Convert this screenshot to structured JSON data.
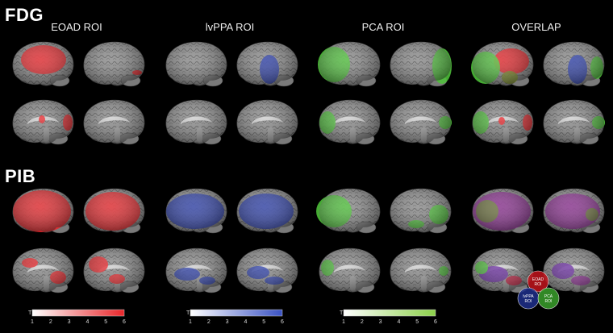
{
  "sections": {
    "top": "FDG",
    "bottom": "PIB"
  },
  "columns": [
    {
      "label": "EOAD ROI",
      "overlay_color": "#e8262a"
    },
    {
      "label": "lvPPA ROI",
      "overlay_color": "#2c3fa8"
    },
    {
      "label": "PCA ROI",
      "overlay_color": "#4fc23a"
    },
    {
      "label": "OVERLAP",
      "overlay_color": "#8a2e8f"
    }
  ],
  "colorbars": [
    {
      "axis_label": "T",
      "ticks": [
        "1",
        "2",
        "3",
        "4",
        "5",
        "6"
      ],
      "color": "#e8262a"
    },
    {
      "axis_label": "T",
      "ticks": [
        "1",
        "2",
        "3",
        "4",
        "5",
        "6"
      ],
      "color": "#3a52c4"
    },
    {
      "axis_label": "T",
      "ticks": [
        "1",
        "2",
        "3",
        "4",
        "5",
        "6"
      ],
      "color": "#8cd04a"
    }
  ],
  "venn": {
    "circles": [
      {
        "label_line1": "EOAD",
        "label_line2": "ROI",
        "color": "#c2141c"
      },
      {
        "label_line1": "lvPPA",
        "label_line2": "ROI",
        "color": "#1e2f8c"
      },
      {
        "label_line1": "PCA",
        "label_line2": "ROI",
        "color": "#3aa02c"
      }
    ]
  }
}
